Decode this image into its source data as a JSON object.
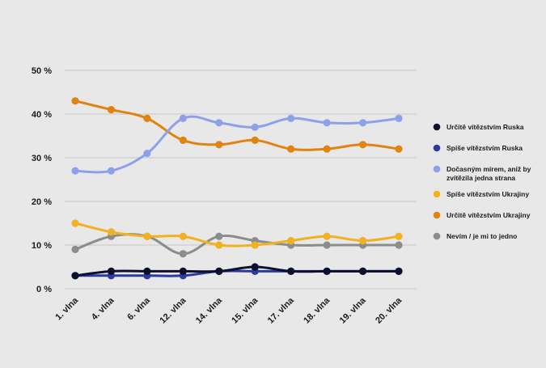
{
  "chart_data": {
    "type": "line",
    "categories": [
      "1. vlna",
      "4. vlna",
      "6. vlna",
      "12. vlna",
      "14. vlna",
      "15. vlna",
      "17. vlna",
      "18. vlna",
      "19. vlna",
      "20. vlna"
    ],
    "ylim": [
      0,
      50
    ],
    "yticks": [
      0,
      10,
      20,
      30,
      40,
      50
    ],
    "ytick_labels": [
      "0 %",
      "10 %",
      "20 %",
      "30 %",
      "40 %",
      "50 %"
    ],
    "grid": true,
    "legend_position": "right",
    "series": [
      {
        "name": "Určitě vítězstvím Ruska",
        "color": "#0c0f2e",
        "values": [
          3,
          4,
          4,
          4,
          4,
          5,
          4,
          4,
          4,
          4
        ]
      },
      {
        "name": "Spíše vítězstvím Ruska",
        "color": "#2b3a9c",
        "values": [
          3,
          3,
          3,
          3,
          4,
          4,
          4,
          4,
          4,
          4
        ]
      },
      {
        "name": "Dočasným mírem, aniž by zvítězila jedna strana",
        "color": "#8fa0ea",
        "values": [
          27,
          27,
          31,
          39,
          38,
          37,
          39,
          38,
          38,
          39
        ]
      },
      {
        "name": "Spíše vítězstvím Ukrajiny",
        "color": "#f2b120",
        "values": [
          15,
          13,
          12,
          12,
          10,
          10,
          11,
          12,
          11,
          12
        ]
      },
      {
        "name": "Určitě vítězstvím Ukrajiny",
        "color": "#e0830f",
        "values": [
          43,
          41,
          39,
          34,
          33,
          34,
          32,
          32,
          33,
          32
        ]
      },
      {
        "name": "Nevím / je mi to jedno",
        "color": "#8c8c8c",
        "values": [
          9,
          12,
          12,
          8,
          12,
          11,
          10,
          10,
          10,
          10
        ]
      }
    ]
  }
}
